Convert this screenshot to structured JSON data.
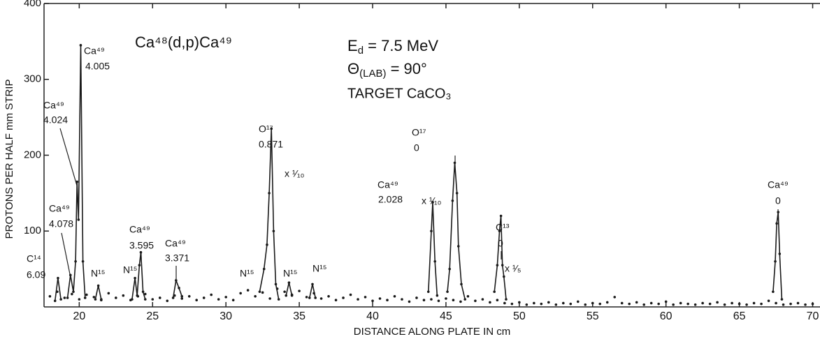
{
  "chart_data": {
    "type": "scatter",
    "x_label": "DISTANCE ALONG PLATE IN cm",
    "y_label": "PROTONS PER HALF mm STRIP",
    "xlim": [
      17.6,
      70.5
    ],
    "xticks": [
      20,
      25,
      30,
      35,
      40,
      45,
      50,
      55,
      60,
      65,
      70
    ],
    "ylim": [
      0,
      400
    ],
    "yticks": [
      100,
      200,
      300,
      400
    ],
    "series": [
      {
        "mode": "markers",
        "color": "#1a1a1a",
        "x": [
          18,
          18.5,
          19,
          19.5,
          20,
          20.5,
          21,
          21.5,
          22,
          22.5,
          23,
          23.5,
          24,
          24.5,
          25,
          25.5,
          26,
          26.5,
          27,
          27.5,
          28,
          28.5,
          29,
          29.5,
          30,
          30.5,
          31,
          31.5,
          32,
          32.5,
          33,
          33.5,
          34,
          34.5,
          35,
          35.5,
          36,
          36.5,
          37,
          37.5,
          38,
          38.5,
          39,
          39.5,
          40,
          40.5,
          41,
          41.5,
          42,
          42.5,
          43,
          43.5,
          44,
          44.5,
          45,
          45.5,
          46,
          46.5,
          47,
          47.5,
          48,
          48.5,
          49,
          49.5,
          50,
          50.5,
          51,
          51.5,
          52,
          52.5,
          53,
          53.5,
          54,
          54.5,
          55,
          55.5,
          56,
          56.5,
          57,
          57.5,
          58,
          58.5,
          59,
          59.5,
          60,
          60.5,
          61,
          61.5,
          62,
          62.5,
          63,
          63.5,
          64,
          64.5,
          65,
          65.5,
          66,
          66.5,
          67,
          67.5,
          68,
          68.5,
          69,
          69.5,
          70
        ],
        "values": [
          14,
          20,
          12,
          17,
          10,
          16,
          13,
          9,
          18,
          12,
          15,
          9,
          14,
          17,
          10,
          12,
          8,
          15,
          11,
          14,
          9,
          12,
          16,
          10,
          13,
          9,
          18,
          22,
          14,
          19,
          11,
          24,
          20,
          16,
          21,
          13,
          18,
          11,
          14,
          9,
          12,
          16,
          10,
          13,
          8,
          11,
          9,
          14,
          10,
          7,
          12,
          9,
          10,
          8,
          11,
          9,
          7,
          14,
          8,
          10,
          6,
          9,
          5,
          4,
          6,
          3,
          5,
          4,
          6,
          3,
          5,
          4,
          7,
          3,
          5,
          4,
          6,
          13,
          5,
          4,
          6,
          3,
          5,
          4,
          7,
          3,
          5,
          4,
          3,
          5,
          4,
          6,
          3,
          5,
          4,
          3,
          5,
          4,
          8,
          5,
          3,
          4,
          5,
          3,
          4
        ]
      },
      {
        "mode": "lines",
        "markers": true,
        "color": "#1a1a1a",
        "x": [
          18.35,
          18.55,
          18.75,
          null,
          19.2,
          19.4,
          19.6,
          19.75,
          19.85,
          19.95,
          20.1,
          20.25,
          20.4,
          null,
          21.1,
          21.3,
          21.5,
          null,
          23.6,
          23.8,
          23.95,
          24.1,
          24.2,
          24.35,
          24.5,
          null,
          26.4,
          26.6,
          26.8,
          27.0,
          null,
          32.3,
          32.6,
          32.8,
          32.95,
          33.1,
          33.25,
          33.4,
          33.6,
          null,
          34.1,
          34.3,
          34.5,
          null,
          35.7,
          35.9,
          36.1,
          null,
          43.8,
          44.0,
          44.1,
          44.25,
          44.4,
          null,
          45.1,
          45.25,
          45.45,
          45.6,
          45.75,
          45.85,
          46.05,
          46.3,
          null,
          48.3,
          48.5,
          48.65,
          48.75,
          48.85,
          48.95,
          49.1,
          null,
          67.3,
          67.45,
          67.55,
          67.65,
          67.75,
          67.9
        ],
        "values": [
          8,
          38,
          10,
          null,
          12,
          42,
          20,
          60,
          165,
          115,
          345,
          60,
          12,
          null,
          10,
          28,
          10,
          null,
          10,
          38,
          15,
          55,
          72,
          20,
          10,
          null,
          12,
          35,
          25,
          14,
          null,
          20,
          50,
          82,
          150,
          235,
          100,
          30,
          10,
          null,
          15,
          32,
          15,
          null,
          12,
          30,
          12,
          null,
          20,
          100,
          138,
          60,
          15,
          null,
          20,
          50,
          140,
          190,
          150,
          80,
          30,
          10,
          null,
          20,
          55,
          100,
          120,
          55,
          40,
          10,
          null,
          20,
          60,
          110,
          125,
          70,
          10
        ]
      }
    ],
    "annotations": [
      "Ca⁴⁸(d,p)Ca⁴⁹",
      "TARGET CaCO₃",
      "C¹⁴",
      "6.09",
      "Ca⁴⁹",
      "4.078",
      "Ca⁴⁹",
      "4.024",
      "Ca⁴⁹",
      "4.005",
      "N¹⁵",
      "N¹⁵",
      "Ca⁴⁹",
      "3.595",
      "Ca⁴⁹",
      "3.371",
      "N¹⁵",
      "O¹⁷",
      "0.871",
      "x ¹⁄₁₀",
      "N¹⁵",
      "N¹⁵",
      "Ca⁴⁹",
      "2.028",
      "O¹⁷",
      "0",
      "x ¹⁄₁₀",
      "C¹³",
      "0",
      "x ¹⁄₅",
      "Ca⁴⁹",
      "0"
    ],
    "conditions": [
      [
        {
          "text": "E"
        },
        {
          "text": "d",
          "baseline": "sub"
        },
        {
          "text": " = 7.5 MeV"
        }
      ],
      [
        {
          "text": "Θ"
        },
        {
          "text": "(LAB)",
          "baseline": "sub"
        },
        {
          "text": " = 90°"
        }
      ]
    ]
  }
}
